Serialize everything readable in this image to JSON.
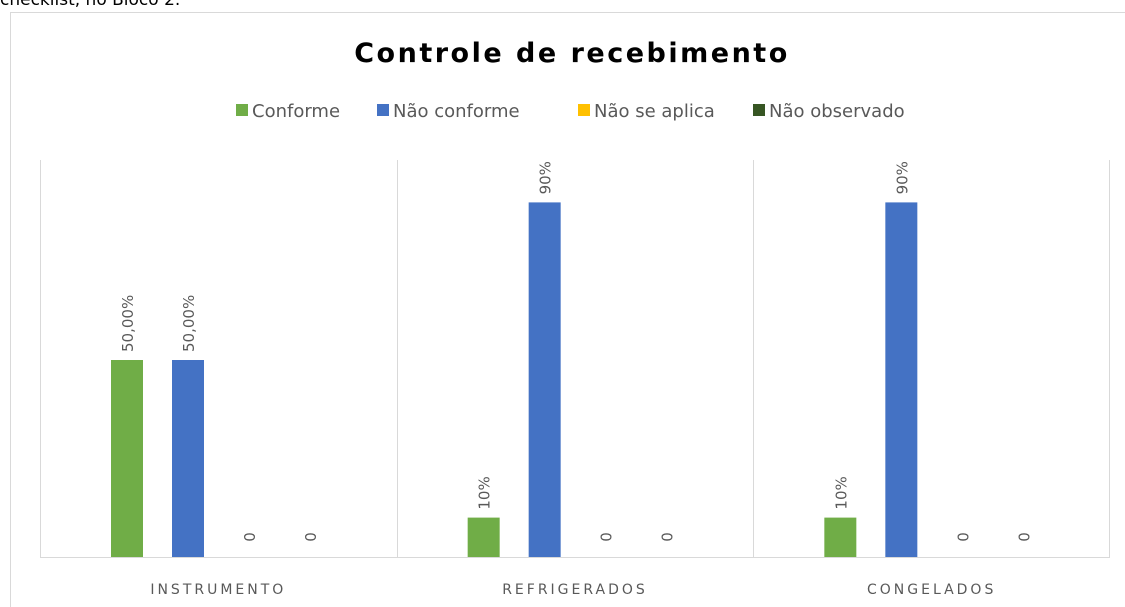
{
  "page_text": "checklist, no Bloco 2.",
  "chart_data": {
    "type": "bar",
    "title": "Controle de recebimento",
    "categories": [
      "INSTRUMENTO",
      "REFRIGERADOS",
      "CONGELADOS"
    ],
    "series": [
      {
        "name": "Conforme",
        "color": "#70ad47",
        "values": [
          50,
          10,
          10
        ],
        "value_labels": [
          "50,00%",
          "10%",
          "10%"
        ]
      },
      {
        "name": "Não conforme",
        "color": "#4472c4",
        "values": [
          50,
          90,
          90
        ],
        "value_labels": [
          "50,00%",
          "90%",
          "90%"
        ]
      },
      {
        "name": "Não se aplica",
        "color": "#ffc000",
        "values": [
          0,
          0,
          0
        ],
        "value_labels": [
          "0",
          "0",
          "0"
        ]
      },
      {
        "name": "Não observado",
        "color": "#375623",
        "values": [
          0,
          0,
          0
        ],
        "value_labels": [
          "0",
          "0",
          "0"
        ]
      }
    ],
    "ylim": [
      0,
      100
    ],
    "legend": "top"
  }
}
